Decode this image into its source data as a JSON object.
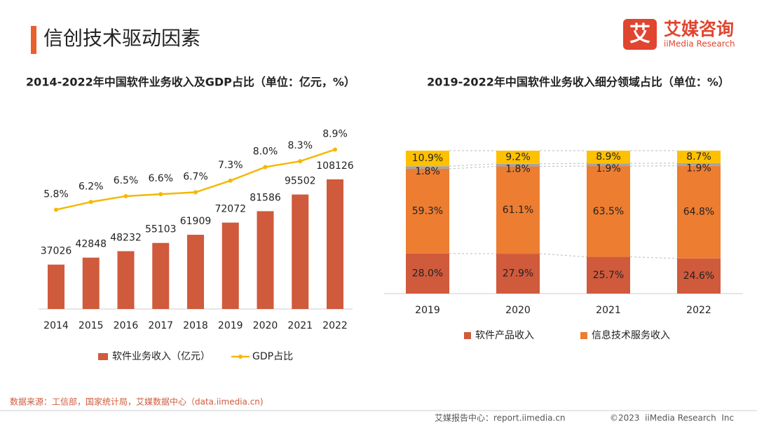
{
  "header": {
    "title": "信创技术驱动因素",
    "logo_mark": "艾",
    "logo_text": "艾媒咨询",
    "logo_subtext": "iiMedia Research"
  },
  "chart_data": [
    {
      "type": "bar",
      "title": "2014-2022年中国软件业务收入及GDP占比（单位：亿元，%）",
      "categories": [
        "2014",
        "2015",
        "2016",
        "2017",
        "2018",
        "2019",
        "2020",
        "2021",
        "2022"
      ],
      "series": [
        {
          "name": "软件业务收入（亿元）",
          "type": "bar",
          "color": "#d05a3c",
          "values": [
            37026,
            42848,
            48232,
            55103,
            61909,
            72072,
            81586,
            95502,
            108126
          ]
        },
        {
          "name": "GDP占比",
          "type": "line",
          "color": "#f5b800",
          "values": [
            5.8,
            6.2,
            6.5,
            6.6,
            6.7,
            7.3,
            8.0,
            8.3,
            8.9
          ],
          "value_labels": [
            "5.8%",
            "6.2%",
            "6.5%",
            "6.6%",
            "6.7%",
            "7.3%",
            "8.0%",
            "8.3%",
            "8.9%"
          ]
        }
      ]
    },
    {
      "type": "stacked_bar",
      "title": "2019-2022年中国软件业务收入细分领域占比（单位：%）",
      "categories": [
        "2019",
        "2020",
        "2021",
        "2022"
      ],
      "series": [
        {
          "name": "软件产品收入",
          "color": "#d05a3c",
          "values": [
            28.0,
            27.9,
            25.7,
            24.6
          ],
          "value_labels": [
            "28.0%",
            "27.9%",
            "25.7%",
            "24.6%"
          ]
        },
        {
          "name": "信息技术服务收入",
          "color": "#ed7d31",
          "values": [
            59.3,
            61.1,
            63.5,
            64.8
          ],
          "value_labels": [
            "59.3%",
            "61.1%",
            "63.5%",
            "64.8%"
          ]
        },
        {
          "color": "#a5a5a5",
          "values": [
            1.8,
            1.8,
            1.9,
            1.9
          ],
          "value_labels": [
            "1.8%",
            "1.8%",
            "1.9%",
            "1.9%"
          ]
        },
        {
          "color": "#ffc000",
          "values": [
            10.9,
            9.2,
            8.9,
            8.7
          ],
          "value_labels": [
            "10.9%",
            "9.2%",
            "8.9%",
            "8.7%"
          ]
        }
      ]
    }
  ],
  "source": "数据来源：工信部，国家统计局，艾媒数据中心（data.iimedia.cn)",
  "footer": {
    "report": "艾媒报告中心：report.iimedia.cn",
    "copyright": "©2023  iiMedia Research  Inc"
  }
}
